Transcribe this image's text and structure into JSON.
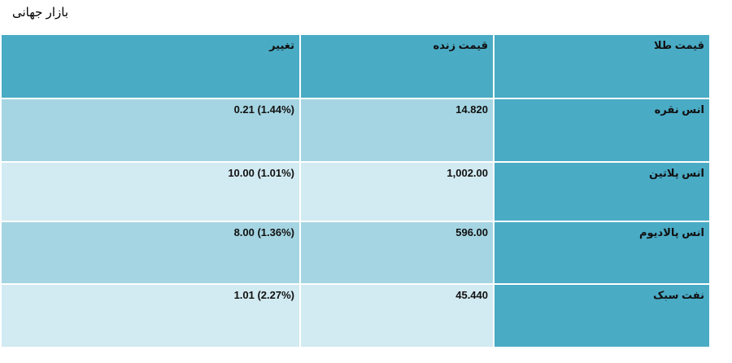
{
  "page": {
    "title": "بازار جهانی"
  },
  "table": {
    "headers": {
      "name": "قیمت طلا",
      "price": "قیمت زنده",
      "change": "تغییر"
    },
    "rows": [
      {
        "name": "انس نقره",
        "price": "14.820",
        "change": "0.21 (1.44%)"
      },
      {
        "name": "انس پلاتین",
        "price": "1,002.00",
        "change": "10.00 (1.01%)"
      },
      {
        "name": "انس پالادیوم",
        "price": "596.00",
        "change": "8.00 (1.36%)"
      },
      {
        "name": "نفت سبک",
        "price": "45.440",
        "change": "1.01 (2.27%)"
      }
    ]
  },
  "colors": {
    "header": "#4aabc5",
    "row_dark": "#a5d5e2",
    "row_light": "#d2eaf1"
  }
}
